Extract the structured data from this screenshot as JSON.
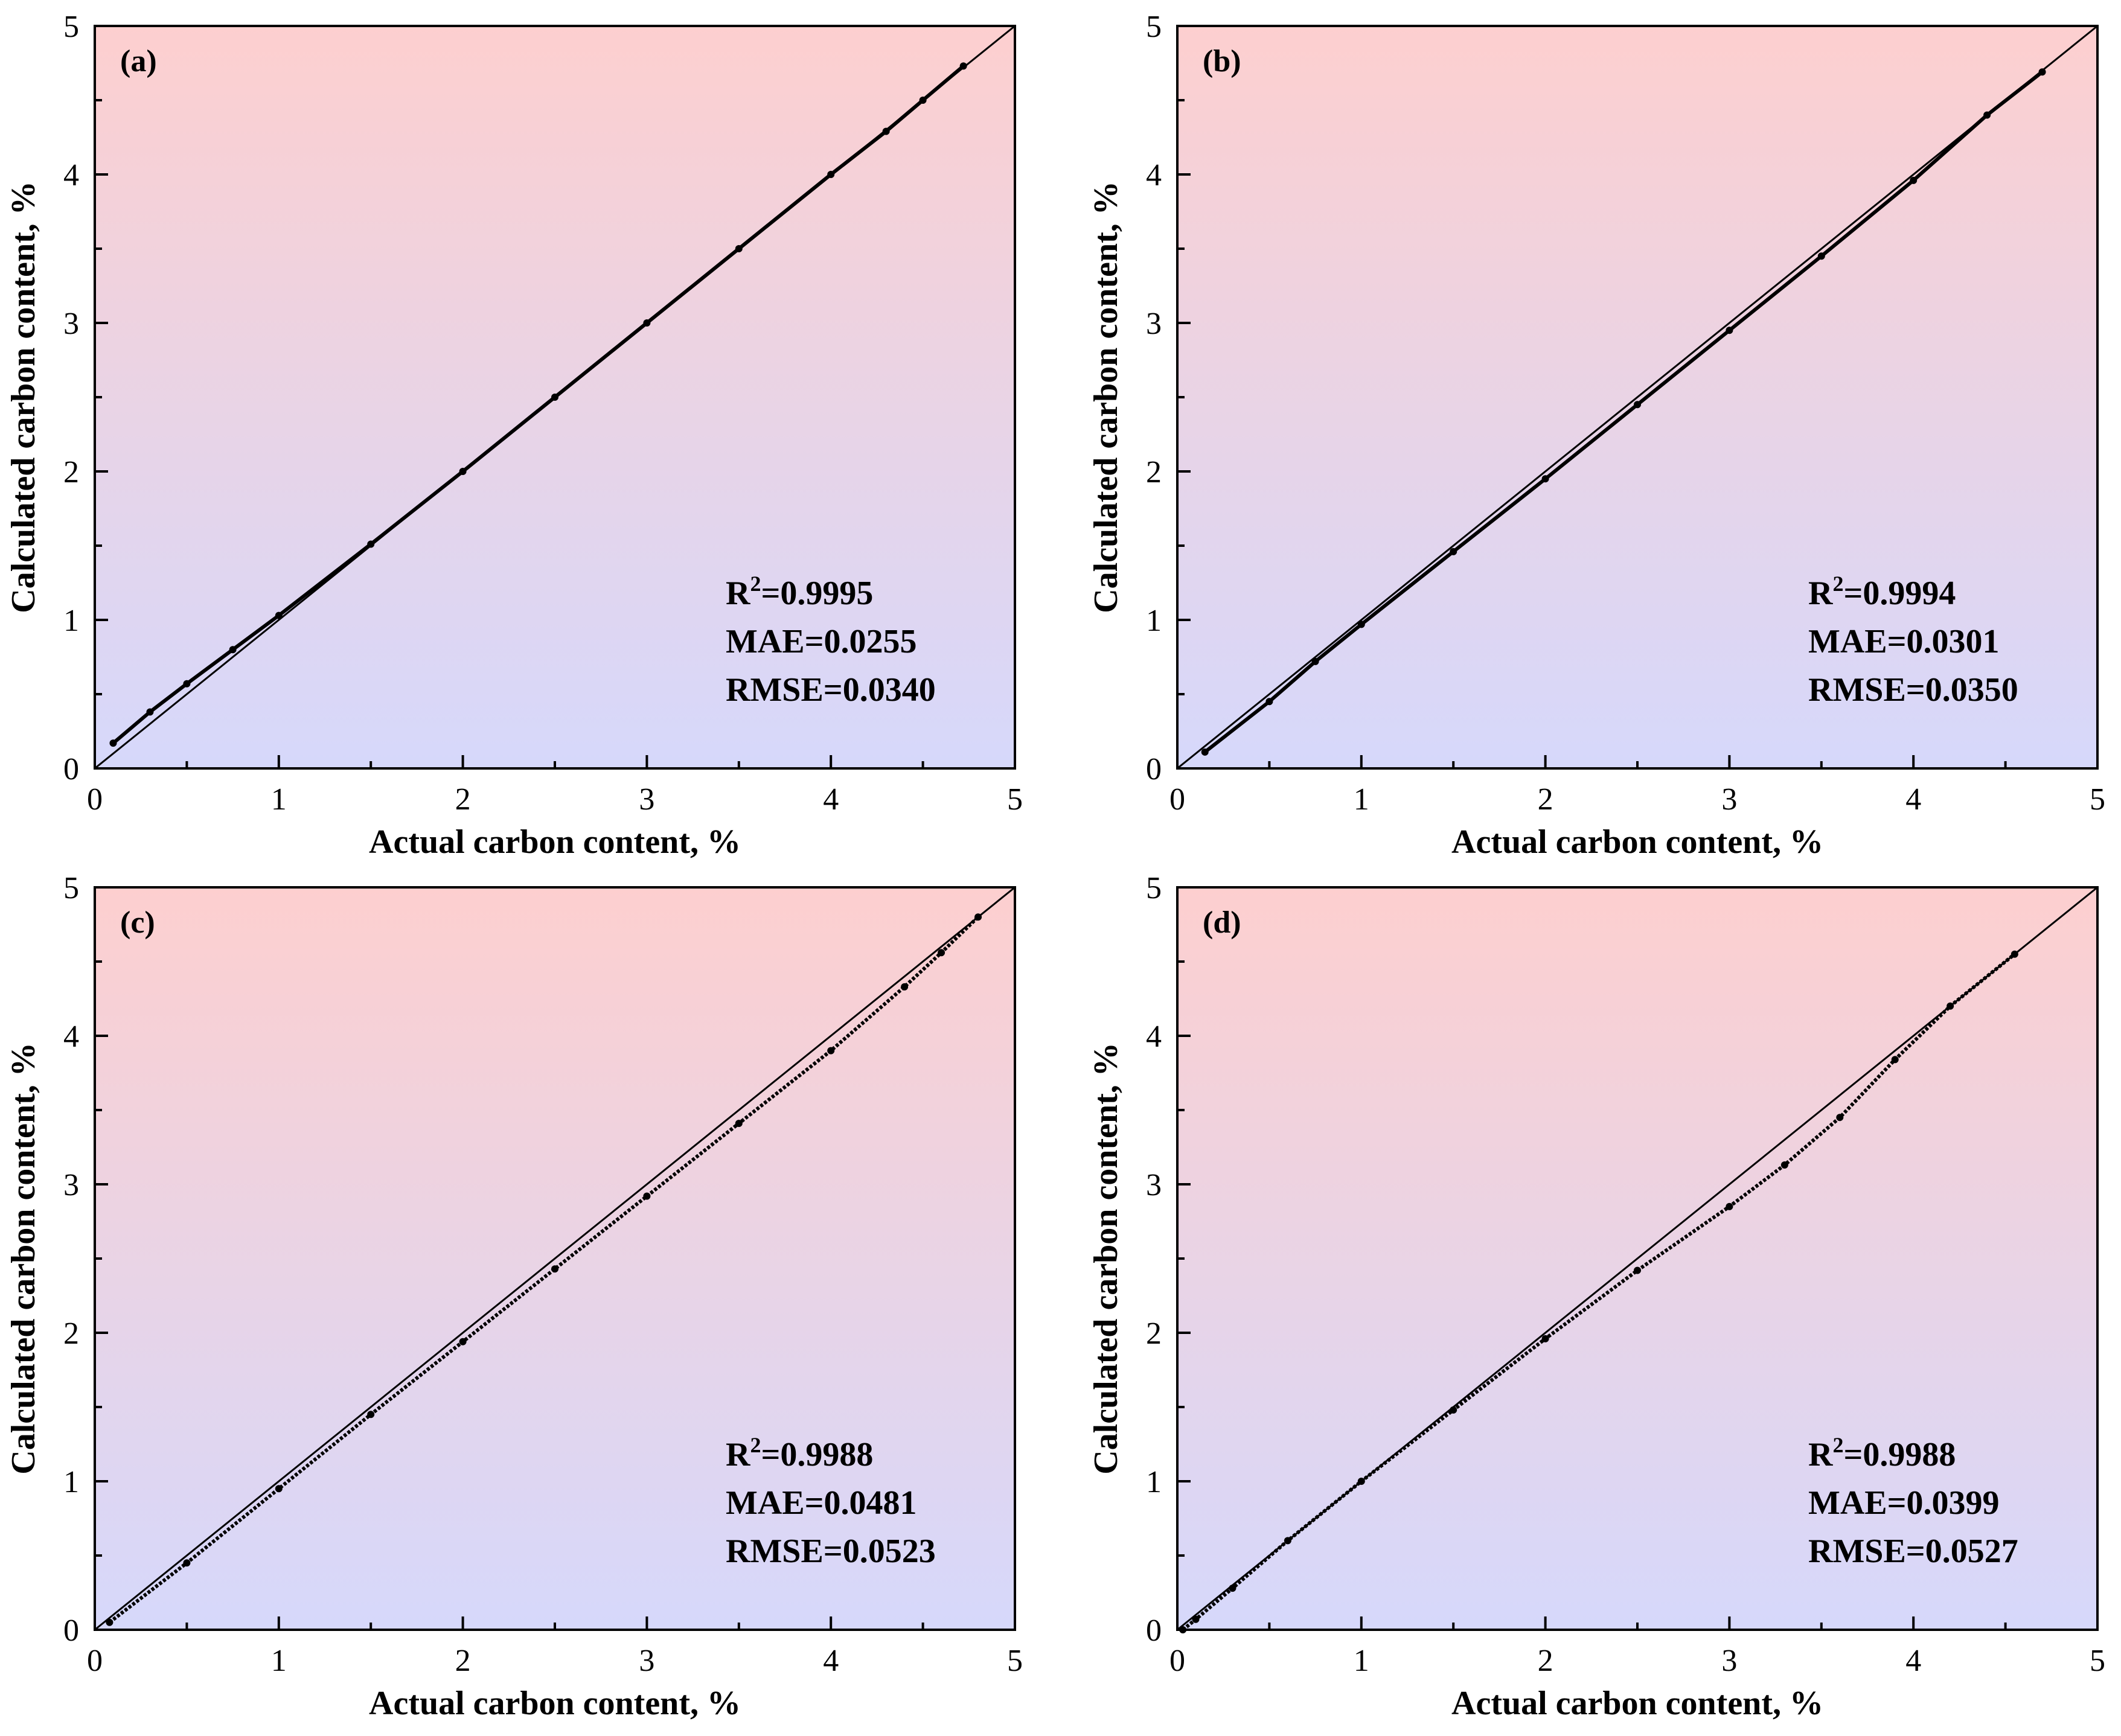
{
  "figure": {
    "colors": {
      "top": "#fdcfcf",
      "bottom": "#d6d8fb",
      "axis": "#000000",
      "series": "#000000"
    }
  },
  "chart_data": [
    {
      "type": "scatter",
      "panel": "(a)",
      "xlabel": "Actual carbon content, %",
      "ylabel": "Calculated carbon content, %",
      "xlim": [
        0,
        5
      ],
      "ylim": [
        0,
        5
      ],
      "xticks": [
        "0",
        "1",
        "2",
        "3",
        "4",
        "5"
      ],
      "yticks": [
        "0",
        "1",
        "2",
        "3",
        "4",
        "5"
      ],
      "reference_line": "y = x",
      "stats": {
        "r2_label": "R",
        "r2_sup": "2",
        "r2_value": "=0.9995",
        "mae": "MAE=0.0255",
        "rmse": "RMSE=0.0340"
      },
      "legend_position": "bottom-right",
      "series": [
        {
          "name": "calculated",
          "x": [
            0.1,
            0.3,
            0.5,
            0.75,
            1.0,
            1.5,
            2.0,
            2.5,
            3.0,
            3.5,
            4.0,
            4.3,
            4.5,
            4.72
          ],
          "y": [
            0.17,
            0.38,
            0.57,
            0.8,
            1.03,
            1.51,
            2.0,
            2.5,
            3.0,
            3.5,
            4.0,
            4.29,
            4.5,
            4.73
          ]
        }
      ]
    },
    {
      "type": "scatter",
      "panel": "(b)",
      "xlabel": "Actual carbon content, %",
      "ylabel": "Calculated carbon content, %",
      "xlim": [
        0,
        5
      ],
      "ylim": [
        0,
        5
      ],
      "xticks": [
        "0",
        "1",
        "2",
        "3",
        "4",
        "5"
      ],
      "yticks": [
        "0",
        "1",
        "2",
        "3",
        "4",
        "5"
      ],
      "reference_line": "y = x",
      "stats": {
        "r2_label": "R",
        "r2_sup": "2",
        "r2_value": "=0.9994",
        "mae": "MAE=0.0301",
        "rmse": "RMSE=0.0350"
      },
      "legend_position": "bottom-right",
      "series": [
        {
          "name": "calculated",
          "x": [
            0.15,
            0.5,
            0.75,
            1.0,
            1.5,
            2.0,
            2.5,
            3.0,
            3.5,
            4.0,
            4.4,
            4.7
          ],
          "y": [
            0.11,
            0.45,
            0.72,
            0.97,
            1.46,
            1.95,
            2.45,
            2.95,
            3.45,
            3.96,
            4.4,
            4.69
          ]
        }
      ]
    },
    {
      "type": "scatter",
      "panel": "(c)",
      "xlabel": "Actual carbon content, %",
      "ylabel": "Calculated carbon content, %",
      "xlim": [
        0,
        5
      ],
      "ylim": [
        0,
        5
      ],
      "xticks": [
        "0",
        "1",
        "2",
        "3",
        "4",
        "5"
      ],
      "yticks": [
        "0",
        "1",
        "2",
        "3",
        "4",
        "5"
      ],
      "reference_line": "y = x",
      "stats": {
        "r2_label": "R",
        "r2_sup": "2",
        "r2_value": "=0.9988",
        "mae": "MAE=0.0481",
        "rmse": "RMSE=0.0523"
      },
      "legend_position": "bottom-right",
      "series": [
        {
          "name": "calculated",
          "x": [
            0.08,
            0.5,
            1.0,
            1.5,
            2.0,
            2.5,
            3.0,
            3.5,
            4.0,
            4.4,
            4.6,
            4.8
          ],
          "y": [
            0.05,
            0.45,
            0.95,
            1.45,
            1.94,
            2.43,
            2.92,
            3.41,
            3.9,
            4.33,
            4.56,
            4.8
          ]
        }
      ]
    },
    {
      "type": "scatter",
      "panel": "(d)",
      "xlabel": "Actual carbon content, %",
      "ylabel": "Calculated carbon content, %",
      "xlim": [
        0,
        5
      ],
      "ylim": [
        0,
        5
      ],
      "xticks": [
        "0",
        "1",
        "2",
        "3",
        "4",
        "5"
      ],
      "yticks": [
        "0",
        "1",
        "2",
        "3",
        "4",
        "5"
      ],
      "reference_line": "y = x",
      "stats": {
        "r2_label": "R",
        "r2_sup": "2",
        "r2_value": "=0.9988",
        "mae": "MAE=0.0399",
        "rmse": "RMSE=0.0527"
      },
      "legend_position": "bottom-right",
      "series": [
        {
          "name": "calculated",
          "x": [
            0.03,
            0.1,
            0.3,
            0.6,
            1.0,
            1.5,
            2.0,
            2.5,
            3.0,
            3.3,
            3.6,
            3.9,
            4.2,
            4.55
          ],
          "y": [
            0.0,
            0.07,
            0.28,
            0.6,
            1.0,
            1.48,
            1.96,
            2.42,
            2.85,
            3.13,
            3.45,
            3.84,
            4.2,
            4.55
          ]
        }
      ]
    }
  ]
}
